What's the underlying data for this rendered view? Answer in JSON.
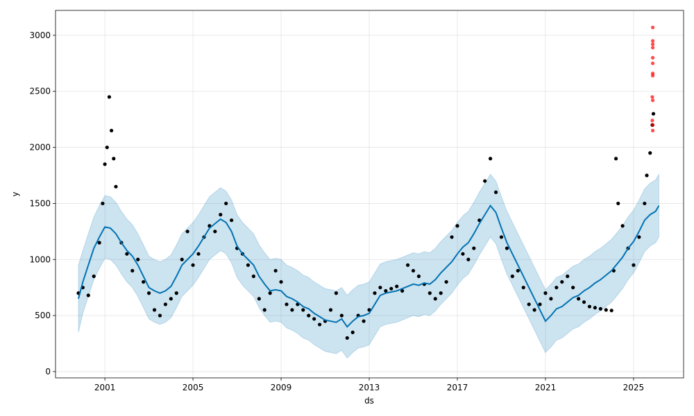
{
  "chart_data": {
    "type": "forecast",
    "xlabel": "ds",
    "ylabel": "y",
    "xlim": [
      1998.76,
      2027.27
    ],
    "ylim": [
      -56,
      3222
    ],
    "xticks": [
      2001,
      2005,
      2009,
      2013,
      2017,
      2021,
      2025
    ],
    "yticks": [
      0,
      500,
      1000,
      1500,
      2000,
      2500,
      3000
    ],
    "grid": true,
    "forecast": {
      "line_color": "#0072B2",
      "band_color": "#0072B2",
      "x": [
        1999.8,
        2000.0,
        2000.25,
        2000.5,
        2000.75,
        2001.0,
        2001.25,
        2001.5,
        2001.75,
        2002.0,
        2002.25,
        2002.5,
        2002.75,
        2003.0,
        2003.25,
        2003.5,
        2003.75,
        2004.0,
        2004.25,
        2004.5,
        2004.75,
        2005.0,
        2005.25,
        2005.5,
        2005.75,
        2006.0,
        2006.25,
        2006.5,
        2006.75,
        2007.0,
        2007.25,
        2007.5,
        2007.75,
        2008.0,
        2008.25,
        2008.5,
        2008.75,
        2009.0,
        2009.25,
        2009.5,
        2009.75,
        2010.0,
        2010.25,
        2010.5,
        2010.75,
        2011.0,
        2011.25,
        2011.5,
        2011.75,
        2012.0,
        2012.25,
        2012.5,
        2012.75,
        2013.0,
        2013.25,
        2013.5,
        2013.75,
        2014.0,
        2014.25,
        2014.5,
        2014.75,
        2015.0,
        2015.25,
        2015.5,
        2015.75,
        2016.0,
        2016.25,
        2016.5,
        2016.75,
        2017.0,
        2017.25,
        2017.5,
        2017.75,
        2018.0,
        2018.25,
        2018.5,
        2018.75,
        2019.0,
        2019.25,
        2019.5,
        2019.75,
        2020.0,
        2020.25,
        2020.5,
        2020.75,
        2021.0,
        2021.25,
        2021.5,
        2021.75,
        2022.0,
        2022.25,
        2022.5,
        2022.75,
        2023.0,
        2023.25,
        2023.5,
        2023.75,
        2024.0,
        2024.25,
        2024.5,
        2024.75,
        2025.0,
        2025.25,
        2025.5,
        2025.75,
        2026.0,
        2026.15
      ],
      "yhat": [
        650,
        800,
        950,
        1100,
        1200,
        1290,
        1280,
        1230,
        1150,
        1080,
        1030,
        950,
        850,
        750,
        720,
        700,
        720,
        760,
        850,
        950,
        1000,
        1050,
        1120,
        1200,
        1280,
        1320,
        1360,
        1330,
        1250,
        1120,
        1050,
        1000,
        950,
        850,
        780,
        720,
        730,
        720,
        670,
        650,
        620,
        580,
        560,
        520,
        490,
        460,
        450,
        440,
        470,
        400,
        450,
        490,
        500,
        520,
        600,
        680,
        700,
        710,
        720,
        740,
        760,
        780,
        770,
        790,
        780,
        820,
        880,
        930,
        980,
        1050,
        1110,
        1150,
        1230,
        1320,
        1400,
        1480,
        1420,
        1280,
        1150,
        1050,
        950,
        850,
        750,
        650,
        550,
        450,
        500,
        560,
        580,
        620,
        660,
        680,
        720,
        750,
        790,
        820,
        860,
        900,
        960,
        1020,
        1100,
        1160,
        1250,
        1350,
        1400,
        1430,
        1480
      ],
      "lower": [
        350,
        520,
        670,
        820,
        920,
        1010,
        1000,
        950,
        870,
        800,
        750,
        670,
        570,
        470,
        440,
        420,
        440,
        480,
        570,
        670,
        720,
        770,
        840,
        920,
        1000,
        1040,
        1080,
        1050,
        970,
        840,
        770,
        720,
        670,
        570,
        500,
        440,
        450,
        440,
        390,
        370,
        340,
        300,
        280,
        240,
        210,
        180,
        170,
        160,
        190,
        120,
        170,
        210,
        220,
        240,
        320,
        400,
        420,
        430,
        440,
        460,
        480,
        500,
        490,
        510,
        500,
        540,
        600,
        650,
        700,
        770,
        830,
        870,
        950,
        1040,
        1120,
        1200,
        1140,
        1000,
        870,
        770,
        670,
        570,
        470,
        370,
        270,
        170,
        220,
        280,
        300,
        340,
        380,
        400,
        440,
        470,
        510,
        540,
        580,
        620,
        680,
        740,
        820,
        880,
        970,
        1070,
        1120,
        1150,
        1200
      ],
      "upper": [
        950,
        1080,
        1230,
        1380,
        1480,
        1570,
        1560,
        1510,
        1430,
        1360,
        1310,
        1230,
        1130,
        1030,
        1000,
        980,
        1000,
        1040,
        1130,
        1230,
        1280,
        1330,
        1400,
        1480,
        1560,
        1600,
        1640,
        1610,
        1530,
        1400,
        1330,
        1280,
        1230,
        1130,
        1060,
        1000,
        1010,
        1000,
        950,
        930,
        900,
        860,
        840,
        800,
        770,
        740,
        730,
        720,
        750,
        680,
        730,
        770,
        780,
        800,
        880,
        960,
        980,
        990,
        1000,
        1020,
        1040,
        1060,
        1050,
        1070,
        1060,
        1100,
        1160,
        1210,
        1260,
        1330,
        1390,
        1430,
        1510,
        1600,
        1680,
        1760,
        1700,
        1560,
        1430,
        1330,
        1230,
        1130,
        1030,
        930,
        830,
        730,
        780,
        840,
        860,
        900,
        940,
        960,
        1000,
        1030,
        1070,
        1100,
        1140,
        1180,
        1240,
        1300,
        1380,
        1440,
        1530,
        1630,
        1680,
        1710,
        1760
      ]
    },
    "observed": {
      "color": "#000000",
      "x": [
        1999.8,
        2000.0,
        2000.25,
        2000.5,
        2000.75,
        2000.9,
        2001.0,
        2001.1,
        2001.2,
        2001.3,
        2001.4,
        2001.5,
        2001.75,
        2002.0,
        2002.25,
        2002.5,
        2002.75,
        2003.0,
        2003.25,
        2003.5,
        2003.75,
        2004.0,
        2004.25,
        2004.5,
        2004.75,
        2005.0,
        2005.25,
        2005.5,
        2005.75,
        2006.0,
        2006.25,
        2006.5,
        2006.75,
        2007.0,
        2007.25,
        2007.5,
        2007.75,
        2008.0,
        2008.25,
        2008.5,
        2008.75,
        2009.0,
        2009.25,
        2009.5,
        2009.75,
        2010.0,
        2010.25,
        2010.5,
        2010.75,
        2011.0,
        2011.25,
        2011.5,
        2011.75,
        2012.0,
        2012.25,
        2012.5,
        2012.75,
        2013.0,
        2013.25,
        2013.5,
        2013.75,
        2014.0,
        2014.25,
        2014.5,
        2014.75,
        2015.0,
        2015.25,
        2015.5,
        2015.75,
        2016.0,
        2016.25,
        2016.5,
        2016.75,
        2017.0,
        2017.25,
        2017.5,
        2017.75,
        2018.0,
        2018.25,
        2018.5,
        2018.75,
        2019.0,
        2019.25,
        2019.5,
        2019.75,
        2020.0,
        2020.25,
        2020.5,
        2020.75,
        2021.0,
        2021.25,
        2021.5,
        2021.75,
        2022.0,
        2022.25,
        2022.5,
        2022.75,
        2023.0,
        2023.25,
        2023.5,
        2023.75,
        2024.0,
        2024.1,
        2024.2,
        2024.3,
        2024.5,
        2024.75,
        2025.0,
        2025.25,
        2025.5,
        2025.6,
        2025.75,
        2025.85,
        2025.9
      ],
      "y": [
        700,
        750,
        680,
        850,
        1150,
        1500,
        1850,
        2000,
        2450,
        2150,
        1900,
        1650,
        1150,
        1050,
        900,
        1000,
        800,
        700,
        550,
        500,
        600,
        650,
        700,
        1000,
        1250,
        950,
        1050,
        1200,
        1300,
        1250,
        1400,
        1500,
        1350,
        1100,
        1050,
        950,
        850,
        650,
        550,
        700,
        900,
        800,
        600,
        550,
        600,
        550,
        500,
        470,
        420,
        450,
        550,
        700,
        500,
        300,
        350,
        500,
        450,
        550,
        700,
        750,
        720,
        740,
        760,
        720,
        950,
        900,
        850,
        780,
        700,
        650,
        700,
        800,
        1200,
        1300,
        1050,
        1000,
        1100,
        1350,
        1700,
        1900,
        1600,
        1200,
        1100,
        850,
        900,
        750,
        600,
        550,
        600,
        700,
        650,
        750,
        800,
        850,
        750,
        650,
        620,
        580,
        570,
        560,
        550,
        545,
        900,
        1900,
        1500,
        1300,
        1100,
        950,
        1200,
        1500,
        1750,
        1950,
        2200,
        2300
      ]
    },
    "outliers": {
      "color": "#ff0000",
      "x": [
        2025.87,
        2025.87,
        2025.87,
        2025.87,
        2025.87,
        2025.87,
        2025.87,
        2025.87,
        2025.85,
        2025.87,
        2025.85,
        2025.87,
        2025.87
      ],
      "y": [
        3070,
        2950,
        2920,
        2890,
        2800,
        2750,
        2660,
        2640,
        2450,
        2420,
        2240,
        2200,
        2150
      ]
    }
  }
}
